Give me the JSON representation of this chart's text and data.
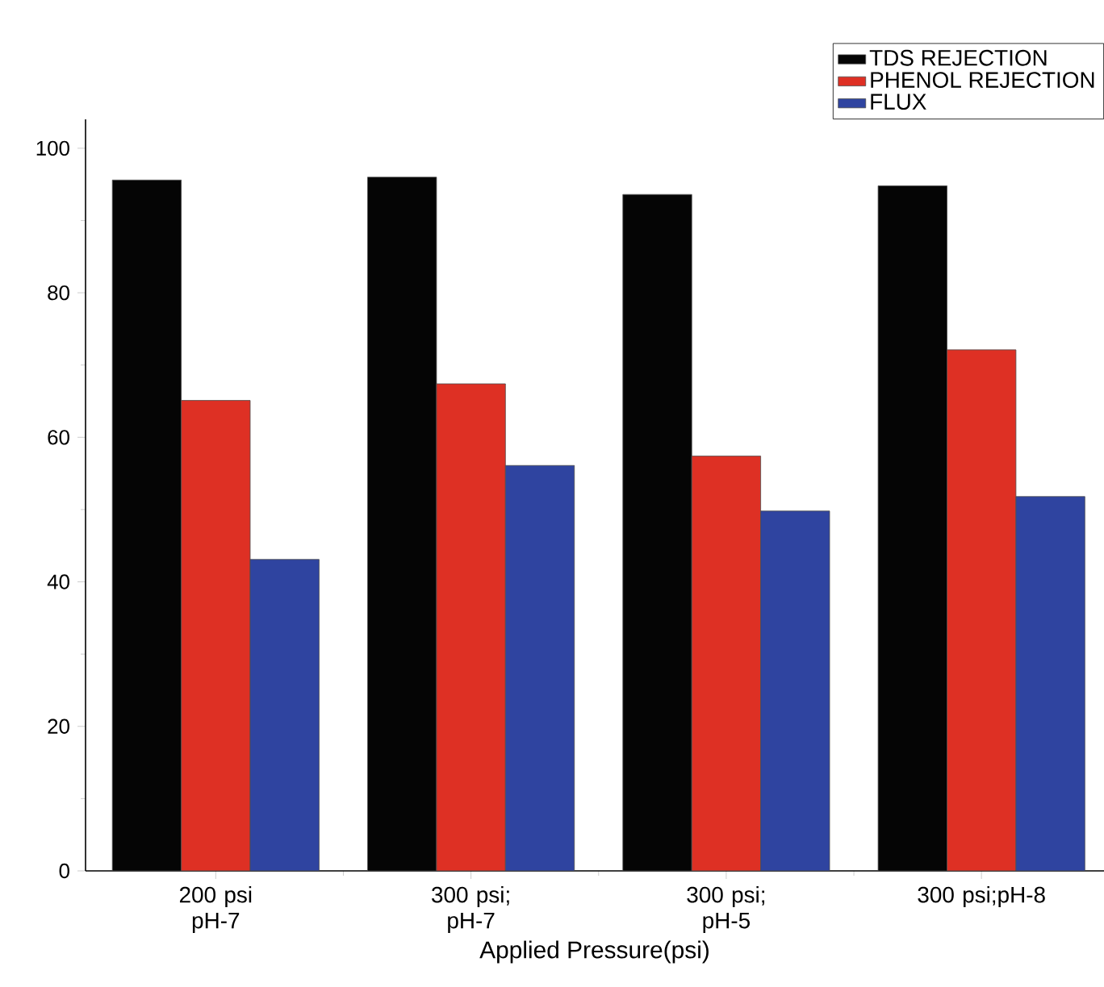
{
  "chart_data": {
    "type": "bar",
    "xlabel": "Applied Pressure(psi)",
    "categories": [
      "200 psi pH-7",
      "300 psi; pH-7",
      "300 psi; pH-5",
      "300 psi;pH-8"
    ],
    "series": [
      {
        "name": "TDS REJECTION",
        "color": "#050505",
        "values": [
          95.6,
          96.0,
          93.6,
          94.8
        ]
      },
      {
        "name": "PHENOL REJECTION",
        "color": "#de3024",
        "values": [
          65.1,
          67.4,
          57.4,
          72.1
        ]
      },
      {
        "name": "FLUX",
        "color": "#2f44a0",
        "values": [
          43.1,
          56.1,
          49.8,
          51.8
        ]
      }
    ],
    "ylim": [
      0,
      104
    ],
    "yticks": [
      0,
      20,
      40,
      60,
      80,
      100
    ],
    "grid": false,
    "legend": "top right"
  }
}
